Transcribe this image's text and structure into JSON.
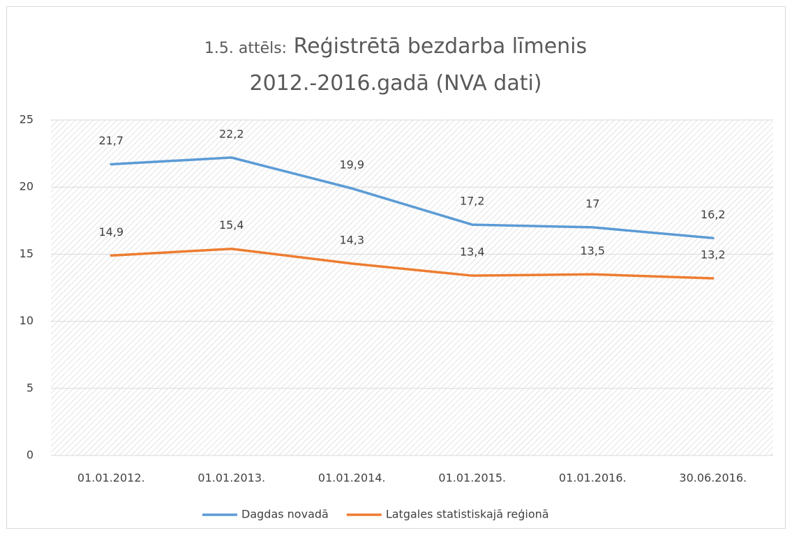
{
  "chart_data": {
    "type": "line",
    "title_label": "1.5. attēls:",
    "title": "Reģistrētā bezdarba līmenis 2012.-2016.gadā (NVA dati)",
    "categories": [
      "01.01.2012.",
      "01.01.2013.",
      "01.01.2014.",
      "01.01.2015.",
      "01.01.2016.",
      "30.06.2016."
    ],
    "series": [
      {
        "name": "Dagdas novadā",
        "color": "#5b9bd5",
        "values": [
          21.7,
          22.2,
          19.9,
          17.2,
          17,
          16.2
        ],
        "value_labels": [
          "21,7",
          "22,2",
          "19,9",
          "17,2",
          "17",
          "16,2"
        ]
      },
      {
        "name": "Latgales statistiskajā reģionā",
        "color": "#ed7d31",
        "values": [
          14.9,
          15.4,
          14.3,
          13.4,
          13.5,
          13.2
        ],
        "value_labels": [
          "14,9",
          "15,4",
          "14,3",
          "13,4",
          "13,5",
          "13,2"
        ]
      }
    ],
    "ylim": [
      0,
      25
    ],
    "yticks": [
      0,
      5,
      10,
      15,
      20,
      25
    ],
    "grid": true,
    "legend": "bottom"
  }
}
